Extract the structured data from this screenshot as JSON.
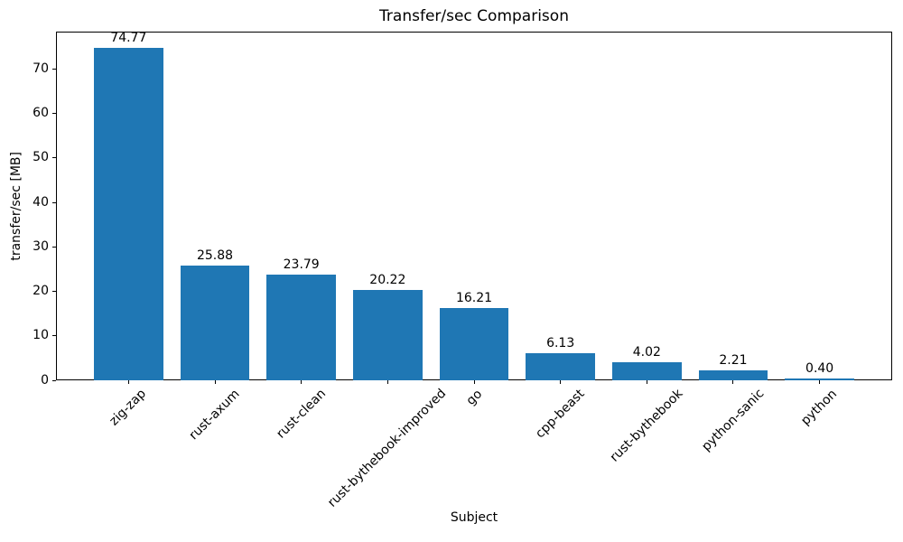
{
  "chart_data": {
    "type": "bar",
    "title": "Transfer/sec Comparison",
    "xlabel": "Subject",
    "ylabel": "transfer/sec [MB]",
    "categories": [
      "zig-zap",
      "rust-axum",
      "rust-clean",
      "rust-bythebook-improved",
      "go",
      "cpp-beast",
      "rust-bythebook",
      "python-sanic",
      "python"
    ],
    "values": [
      74.77,
      25.88,
      23.79,
      20.22,
      16.21,
      6.13,
      4.02,
      2.21,
      0.4
    ],
    "value_labels": [
      "74.77",
      "25.88",
      "23.79",
      "20.22",
      "16.21",
      "6.13",
      "4.02",
      "2.21",
      "0.40"
    ],
    "yticks": [
      0,
      10,
      20,
      30,
      40,
      50,
      60,
      70
    ],
    "ylim": [
      0,
      78.4
    ],
    "bar_color": "#1f77b4",
    "axis_color": "#000000",
    "text_color": "#000000",
    "background": "#ffffff",
    "grid": false,
    "legend": "none",
    "x_tick_rotation_deg": 45
  }
}
